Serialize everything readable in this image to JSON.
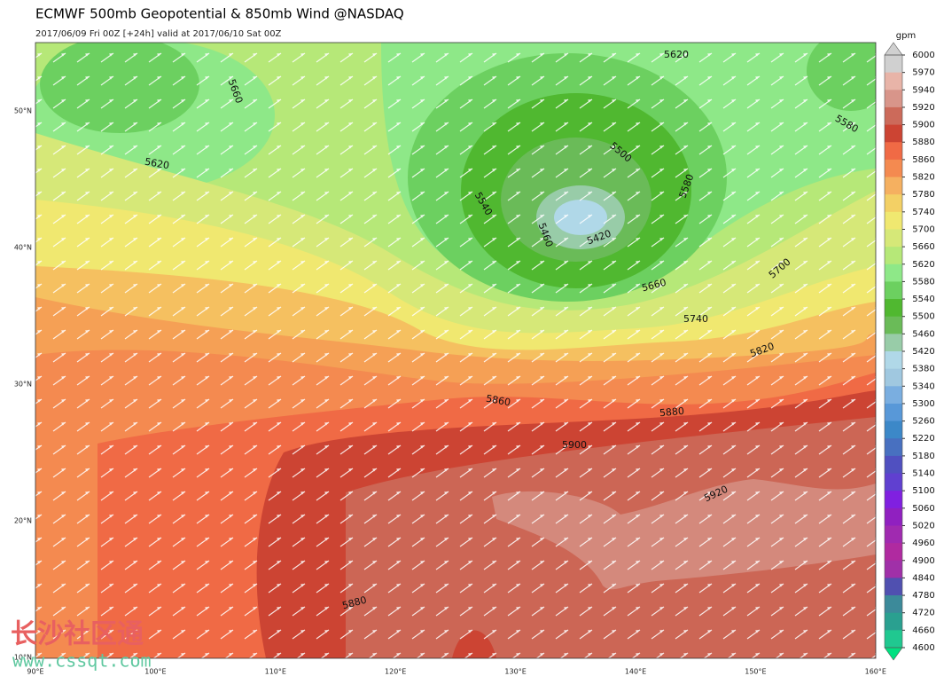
{
  "header": {
    "title": "ECMWF 500mb Geopotential & 850mb Wind @NASDAQ",
    "subtitle": "2017/06/09 Fri 00Z [+24h] valid at 2017/06/10 Sat 00Z"
  },
  "map": {
    "lat_labels": [
      "50°N",
      "40°N",
      "30°N",
      "20°N",
      "10°N"
    ],
    "lon_labels": [
      "90°E",
      "100°E",
      "110°E",
      "120°E",
      "130°E",
      "140°E",
      "150°E",
      "160°E"
    ],
    "contour_labels": [
      5620,
      5660,
      5620,
      5580,
      5540,
      5460,
      5420,
      5500,
      5580,
      5660,
      5700,
      5740,
      5820,
      5860,
      5880,
      5900,
      5920,
      5880
    ]
  },
  "colorbar": {
    "unit": "gpm",
    "levels": [
      6000,
      5970,
      5940,
      5920,
      5900,
      5880,
      5860,
      5820,
      5780,
      5740,
      5700,
      5660,
      5620,
      5580,
      5540,
      5500,
      5460,
      5420,
      5380,
      5340,
      5300,
      5260,
      5220,
      5180,
      5140,
      5100,
      5060,
      5020,
      4960,
      4900,
      4840,
      4780,
      4720,
      4660,
      4600
    ],
    "colors": [
      "#d0d0d0",
      "#e8b4a8",
      "#d8958a",
      "#cc6a5a",
      "#cc4433",
      "#f06a45",
      "#f48a50",
      "#f5b060",
      "#f3d065",
      "#f0e870",
      "#d6e878",
      "#b6e878",
      "#8ee888",
      "#6cd060",
      "#50b830",
      "#6abb58",
      "#98cca8",
      "#b0d8e8",
      "#a0c8e0",
      "#7aaee0",
      "#5898d8",
      "#3c88c8",
      "#4870c0",
      "#5050c0",
      "#6040d0",
      "#8020e0",
      "#9020c0",
      "#a02ab0",
      "#b02aa0",
      "#a030a8",
      "#5050b0",
      "#3c8a9a",
      "#2aa090",
      "#20c890"
    ]
  },
  "watermark": {
    "name": "长沙社区通",
    "url": "www.cssqt.com"
  }
}
